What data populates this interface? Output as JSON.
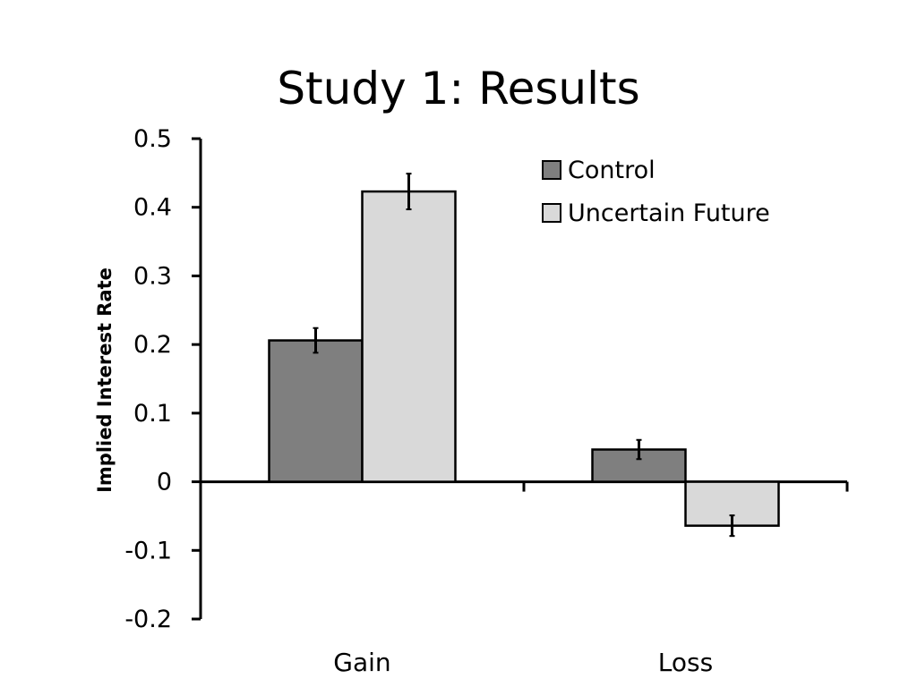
{
  "chart_data": {
    "type": "bar",
    "title": "Study 1: Results",
    "ylabel": "Implied Interest Rate",
    "xlabel": "",
    "categories": [
      "Gain",
      "Loss"
    ],
    "series": [
      {
        "name": "Control",
        "values": [
          0.206,
          0.047
        ],
        "errors": [
          0.018,
          0.014
        ],
        "color": "#7f7f7f"
      },
      {
        "name": "Uncertain Future",
        "values": [
          0.423,
          -0.064
        ],
        "errors": [
          0.026,
          0.015
        ],
        "color": "#d9d9d9"
      }
    ],
    "ylim": [
      -0.2,
      0.5
    ],
    "yticks": [
      0.5,
      0.4,
      0.3,
      0.2,
      0.1,
      0,
      -0.1,
      -0.2
    ],
    "ytick_labels": [
      "0.5",
      "0.4",
      "0.3",
      "0.2",
      "0.1",
      "0",
      "-0.1",
      "-0.2"
    ],
    "grid": false,
    "legend_position": "top-right"
  }
}
